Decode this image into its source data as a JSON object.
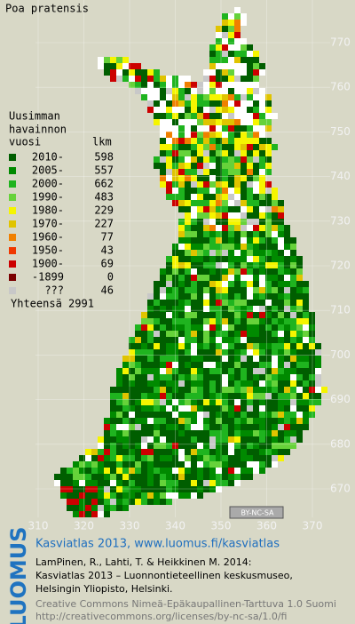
{
  "title": "Poa pratensis",
  "legend": {
    "header": [
      "Uusimman",
      "havainnon",
      "vuosi",
      "lkm"
    ],
    "rows": [
      {
        "label": "2010-",
        "count": "598",
        "color": "#005e00"
      },
      {
        "label": "2005-",
        "count": "557",
        "color": "#008a00"
      },
      {
        "label": "2000-",
        "count": "662",
        "color": "#1fb41f"
      },
      {
        "label": "1990-",
        "count": "483",
        "color": "#66d23a"
      },
      {
        "label": "1980-",
        "count": "229",
        "color": "#f5f500"
      },
      {
        "label": "1970-",
        "count": "227",
        "color": "#e0c400"
      },
      {
        "label": "1960-",
        "count": "77",
        "color": "#f08000"
      },
      {
        "label": "1950-",
        "count": "43",
        "color": "#f03800"
      },
      {
        "label": "1900-",
        "count": "69",
        "color": "#cc0000"
      },
      {
        "label": "-1899",
        "count": "0",
        "color": "#7a0000"
      },
      {
        "label": "???",
        "count": "46",
        "color": "#c8c8c8"
      }
    ],
    "total": "Yhteensä 2991"
  },
  "grid": {
    "x_ticks": [
      310,
      320,
      330,
      340,
      350,
      360,
      370
    ],
    "y_ticks": [
      770,
      760,
      750,
      740,
      730,
      720,
      710,
      700,
      690,
      680,
      670
    ]
  },
  "badge": "BY-NC-SA",
  "footer": {
    "logo": "LUOMUS",
    "heading": "Kasviatlas 2013, www.luomus.fi/kasviatlas",
    "citation": [
      "LamPinen, R., Lahti, T. & Heikkinen M. 2014:",
      "Kasviatlas 2013 – Luonnontieteellinen keskusmuseo,",
      "Helsingin Yliopisto, Helsinki."
    ],
    "license": [
      "Creative Commons Nimeä-Epäkaupallinen-Tarttuva 1.0 Suomi",
      "http://creativecommons.org/licenses/by-nc-sa/1.0/fi"
    ]
  }
}
